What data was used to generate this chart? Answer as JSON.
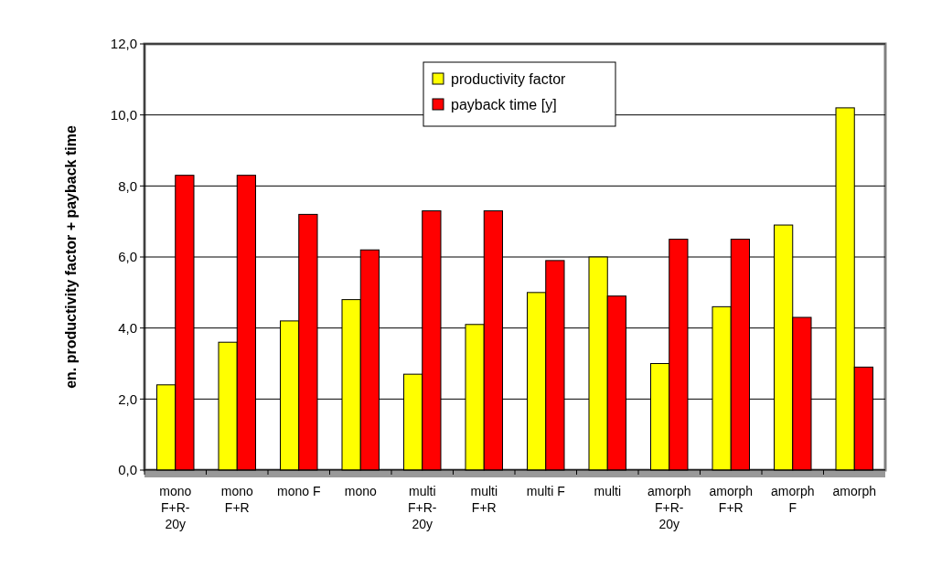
{
  "chart_data": {
    "type": "bar",
    "ylabel": "en. productivity factor + payback time",
    "categories": [
      "mono\nF+R-\n20y",
      "mono\nF+R",
      "mono F",
      "mono",
      "multi\nF+R-\n20y",
      "multi\nF+R",
      "multi F",
      "multi",
      "amorph\nF+R-\n20y",
      "amorph\nF+R",
      "amorph\nF",
      "amorph"
    ],
    "series": [
      {
        "name": "productivity factor",
        "color": "#ffff00",
        "values": [
          2.4,
          3.6,
          4.2,
          4.8,
          2.7,
          4.1,
          5.0,
          6.0,
          3.0,
          4.6,
          6.9,
          10.2
        ]
      },
      {
        "name": "payback time [y]",
        "color": "#ff0000",
        "values": [
          8.3,
          8.3,
          7.2,
          6.2,
          7.3,
          7.3,
          5.9,
          4.9,
          6.5,
          6.5,
          4.3,
          2.9
        ]
      }
    ],
    "ylim": [
      0,
      12
    ],
    "yticks": [
      {
        "value": 0,
        "label": "0,0"
      },
      {
        "value": 2,
        "label": "2,0"
      },
      {
        "value": 4,
        "label": "4,0"
      },
      {
        "value": 6,
        "label": "6,0"
      },
      {
        "value": 8,
        "label": "8,0"
      },
      {
        "value": 10,
        "label": "10,0"
      },
      {
        "value": 12,
        "label": "12,0"
      }
    ],
    "grid": "y",
    "legend": "top"
  }
}
